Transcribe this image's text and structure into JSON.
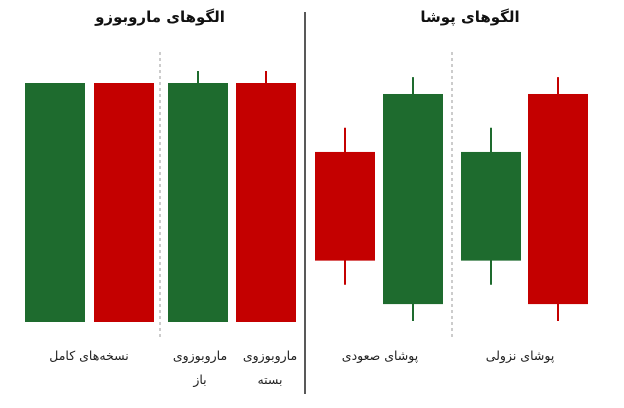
{
  "colors": {
    "bullish": "#1e6b2e",
    "bearish": "#c40000",
    "divider": "#222222",
    "dashed": "#9a9a9a"
  },
  "left_panel": {
    "title": "الگوهای ماروبوزو",
    "labels": {
      "full_bodies": "نسخه‌های کامل",
      "open_line1": "ماروبوزوی",
      "open_line2": "باز",
      "close_line1": "ماروبوزوی",
      "close_line2": "بسته"
    },
    "candles": [
      {
        "name": "full-green-candle",
        "color": "bullish",
        "open": 0,
        "close": 100,
        "high": 100,
        "low": 0
      },
      {
        "name": "full-red-candle",
        "color": "bearish",
        "open": 100,
        "close": 0,
        "high": 100,
        "low": 0
      },
      {
        "name": "open-marubozu-green-candle",
        "color": "bullish",
        "open": 0,
        "close": 100,
        "high": 105,
        "low": 0
      },
      {
        "name": "closed-marubozu-red-candle",
        "color": "bearish",
        "open": 100,
        "close": 0,
        "high": 105,
        "low": 0
      }
    ]
  },
  "right_panel": {
    "title": "الگوهای پوشا",
    "labels": {
      "bullish_engulfing": "پوشای صعودی",
      "bearish_engulfing": "پوشای نزولی"
    },
    "candles": [
      {
        "name": "bullish-engulfing-small-red-candle",
        "color": "bearish",
        "open": 70,
        "close": 25,
        "high": 80,
        "low": 15
      },
      {
        "name": "bullish-engulfing-large-green-candle",
        "color": "bullish",
        "open": 7,
        "close": 94,
        "high": 101,
        "low": 0
      },
      {
        "name": "bearish-engulfing-small-green-candle",
        "color": "bullish",
        "open": 25,
        "close": 70,
        "high": 80,
        "low": 15
      },
      {
        "name": "bearish-engulfing-large-red-candle",
        "color": "bearish",
        "open": 94,
        "close": 7,
        "high": 101,
        "low": 0
      }
    ]
  }
}
